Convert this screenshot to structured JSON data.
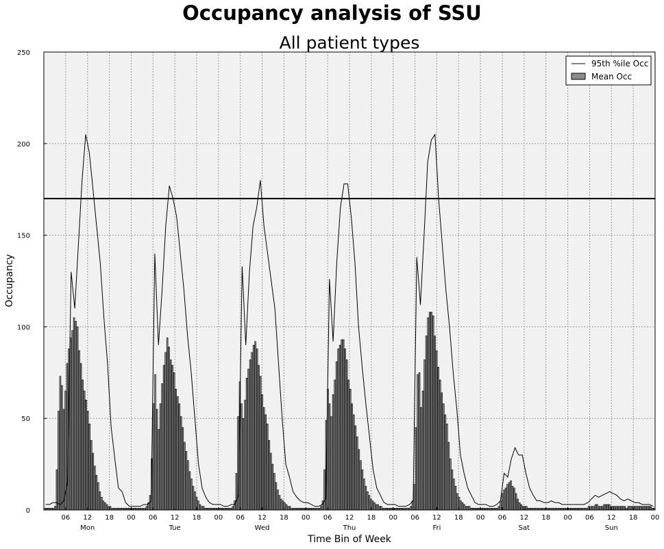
{
  "suptitle": "Occupancy analysis of SSU",
  "chart_data": {
    "type": "bar",
    "title": "All patient types",
    "xlabel": "Time Bin of Week",
    "ylabel": "Occupancy",
    "ylim": [
      0,
      250
    ],
    "y_ticks": [
      0,
      50,
      100,
      150,
      200,
      250
    ],
    "x_hour_ticks": [
      "06",
      "12",
      "18",
      "00",
      "06",
      "12",
      "18",
      "00",
      "06",
      "12",
      "18",
      "00",
      "06",
      "12",
      "18",
      "00",
      "06",
      "12",
      "18",
      "00",
      "06",
      "12",
      "18",
      "00",
      "06",
      "12",
      "18",
      "00"
    ],
    "day_labels": [
      "Mon",
      "Tue",
      "Wed",
      "Thu",
      "Fri",
      "Sat",
      "Sun"
    ],
    "bin_minutes": 60,
    "grid": true,
    "legend_position": "top-right",
    "capacity_line": 170,
    "series": [
      {
        "name": "95th %ile Occ",
        "kind": "line",
        "values": [
          3,
          3,
          4,
          4,
          3,
          5,
          15,
          130,
          110,
          145,
          180,
          205,
          195,
          175,
          155,
          135,
          105,
          80,
          45,
          28,
          12,
          10,
          4,
          2,
          2,
          2,
          2,
          3,
          3,
          5,
          140,
          90,
          120,
          155,
          177,
          170,
          160,
          140,
          120,
          95,
          75,
          50,
          25,
          12,
          7,
          4,
          3,
          3,
          3,
          2,
          2,
          3,
          3,
          8,
          133,
          90,
          130,
          155,
          165,
          180,
          155,
          140,
          125,
          110,
          80,
          50,
          25,
          18,
          10,
          7,
          5,
          4,
          4,
          3,
          2,
          2,
          3,
          6,
          126,
          92,
          135,
          165,
          178,
          178,
          160,
          135,
          100,
          78,
          58,
          40,
          22,
          12,
          8,
          4,
          3,
          3,
          3,
          2,
          2,
          2,
          3,
          5,
          138,
          112,
          150,
          190,
          202,
          205,
          170,
          145,
          120,
          100,
          75,
          55,
          30,
          20,
          12,
          8,
          4,
          3,
          3,
          3,
          2,
          2,
          3,
          5,
          20,
          18,
          28,
          34,
          30,
          30,
          20,
          12,
          8,
          5,
          5,
          4,
          4,
          5,
          4,
          4,
          3,
          3,
          3,
          3,
          3,
          3,
          3,
          4,
          6,
          8,
          7,
          8,
          9,
          10,
          9,
          8,
          6,
          5,
          6,
          5,
          4,
          4,
          3,
          3,
          3,
          2
        ]
      },
      {
        "name": "Mean Occ",
        "kind": "bar",
        "values": [
          1,
          1,
          1,
          1,
          1,
          1,
          2,
          22,
          54,
          73,
          68,
          55,
          65,
          80,
          88,
          94,
          98,
          105,
          103,
          100,
          87,
          80,
          71,
          65,
          60,
          54,
          47,
          38,
          31,
          24,
          19,
          15,
          10,
          7,
          5,
          4,
          3,
          2,
          2,
          1,
          1,
          1,
          1,
          1,
          1,
          1,
          1,
          1,
          1,
          1,
          1,
          1,
          1,
          1,
          1,
          1,
          1,
          1,
          1,
          2,
          4,
          8,
          28,
          58,
          74,
          55,
          44,
          58,
          69,
          79,
          86,
          94,
          89,
          82,
          79,
          75,
          66,
          62,
          58,
          51,
          45,
          37,
          32,
          27,
          21,
          17,
          13,
          10,
          7,
          5,
          3,
          2,
          2,
          1,
          1,
          1,
          1,
          1,
          1,
          1,
          1,
          1,
          1,
          1,
          1,
          1,
          1,
          1,
          1,
          2,
          5,
          20,
          51,
          70,
          58,
          50,
          60,
          72,
          77,
          82,
          86,
          90,
          92,
          88,
          79,
          73,
          63,
          56,
          52,
          47,
          38,
          31,
          25,
          20,
          15,
          11,
          8,
          6,
          5,
          4,
          3,
          2,
          2,
          1,
          1,
          1,
          1,
          1,
          1,
          1,
          1,
          1,
          1,
          1,
          1,
          1,
          1,
          1,
          1,
          1,
          2,
          5,
          22,
          49,
          66,
          58,
          51,
          63,
          71,
          81,
          88,
          90,
          93,
          93,
          88,
          82,
          71,
          66,
          58,
          52,
          46,
          40,
          33,
          27,
          22,
          17,
          13,
          10,
          8,
          6,
          5,
          4,
          3,
          3,
          2,
          2,
          1,
          1,
          1,
          1,
          1,
          1,
          1,
          1,
          1,
          1,
          1,
          1,
          1,
          1,
          1,
          1,
          2,
          5,
          14,
          45,
          74,
          75,
          56,
          65,
          82,
          95,
          105,
          108,
          108,
          106,
          95,
          87,
          78,
          71,
          64,
          58,
          52,
          47,
          37,
          28,
          22,
          17,
          13,
          9,
          7,
          5,
          4,
          3,
          2,
          2,
          2,
          1,
          1,
          1,
          1,
          1,
          1,
          1,
          1,
          1,
          1,
          1,
          1,
          1,
          1,
          1,
          1,
          2,
          5,
          9,
          11,
          12,
          14,
          15,
          16,
          13,
          12,
          9,
          6,
          4,
          3,
          2,
          2,
          2,
          1,
          1,
          1,
          1,
          1,
          1,
          1,
          1,
          1,
          1,
          1,
          1,
          1,
          1,
          1,
          1,
          1,
          1,
          1,
          1,
          1,
          1,
          1,
          1,
          1,
          1,
          1,
          1,
          1,
          1,
          1,
          1,
          1,
          1,
          1,
          2,
          2,
          2,
          2,
          3,
          3,
          2,
          2,
          2,
          3,
          3,
          3,
          3,
          2,
          2,
          2,
          2,
          2,
          2,
          2,
          2,
          2,
          1,
          2,
          2,
          2,
          2,
          2,
          2,
          2,
          2,
          2,
          2,
          2,
          2,
          2,
          2,
          1,
          1
        ]
      }
    ]
  }
}
